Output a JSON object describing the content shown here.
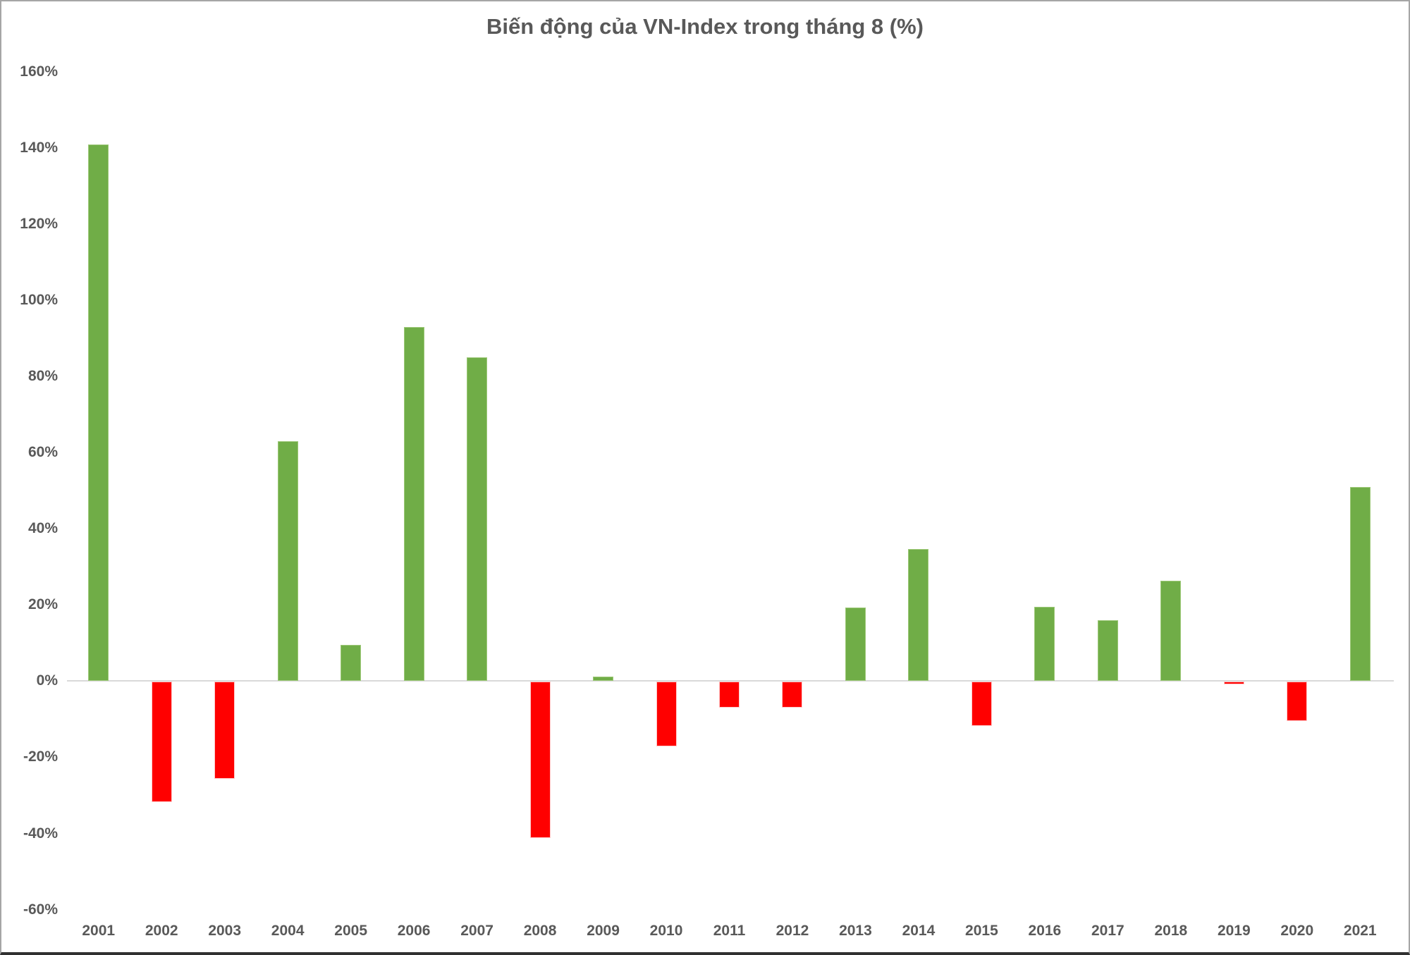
{
  "title": "Biến động của VN-Index trong tháng 8 (%)",
  "colors": {
    "positive": "#70AD47",
    "negative": "#FF0000",
    "text": "#595959",
    "axis_line": "#D9D9D9",
    "background": "#FFFFFF"
  },
  "chart_data": {
    "type": "bar",
    "title": "Biến động của VN-Index trong tháng 8 (%)",
    "categories": [
      "2001",
      "2002",
      "2003",
      "2004",
      "2005",
      "2006",
      "2007",
      "2008",
      "2009",
      "2010",
      "2011",
      "2012",
      "2013",
      "2014",
      "2015",
      "2016",
      "2017",
      "2018",
      "2019",
      "2020",
      "2021"
    ],
    "values": [
      141,
      -31.5,
      -25.5,
      63,
      9.5,
      93,
      85,
      -41,
      1.2,
      -17,
      -6.7,
      -6.8,
      19.4,
      34.6,
      -11.5,
      19.5,
      16,
      26.3,
      -0.6,
      -10.3,
      51
    ],
    "xlabel": "",
    "ylabel": "",
    "ylim": [
      -60,
      160
    ],
    "ytick_step": 20,
    "ytick_suffix": "%",
    "grid": false,
    "legend": false,
    "positive_color": "#70AD47",
    "negative_color": "#FF0000"
  }
}
